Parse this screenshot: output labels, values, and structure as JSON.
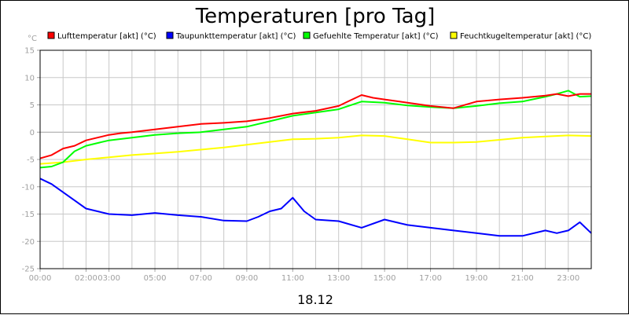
{
  "chart_data": {
    "type": "line",
    "title": "Temperaturen [pro Tag]",
    "ylabel": "°C",
    "xlabel": "18.12",
    "ylim": [
      -25,
      15
    ],
    "xlim": [
      0,
      24
    ],
    "grid": true,
    "legend_position": "top",
    "y_ticks": [
      15,
      10,
      5,
      0,
      -5,
      -10,
      -15,
      -20,
      -25
    ],
    "x_ticks": [
      {
        "label": "00:00",
        "value": 0
      },
      {
        "label": "02:00",
        "value": 2
      },
      {
        "label": "03:00",
        "value": 3
      },
      {
        "label": "05:00",
        "value": 5
      },
      {
        "label": "07:00",
        "value": 7
      },
      {
        "label": "09:00",
        "value": 9
      },
      {
        "label": "11:00",
        "value": 11
      },
      {
        "label": "13:00",
        "value": 13
      },
      {
        "label": "15:00",
        "value": 15
      },
      {
        "label": "17:00",
        "value": 17
      },
      {
        "label": "19:00",
        "value": 19
      },
      {
        "label": "21:00",
        "value": 21
      },
      {
        "label": "23:00",
        "value": 23
      }
    ],
    "series": [
      {
        "name": "Lufttemperatur [akt] (°C)",
        "color": "#ff0000",
        "x": [
          0,
          0.5,
          1,
          1.5,
          2,
          2.5,
          3,
          3.5,
          4,
          5,
          6,
          7,
          8,
          9,
          10,
          11,
          12,
          13,
          13.5,
          14,
          14.5,
          15,
          16,
          17,
          18,
          19,
          20,
          21,
          22,
          22.5,
          23,
          23.5,
          24
        ],
        "values": [
          -4.8,
          -4.2,
          -3.0,
          -2.5,
          -1.5,
          -1.0,
          -0.5,
          -0.2,
          0.0,
          0.5,
          1.0,
          1.5,
          1.7,
          2.0,
          2.6,
          3.4,
          3.9,
          4.8,
          5.8,
          6.8,
          6.3,
          6.0,
          5.4,
          4.8,
          4.4,
          5.6,
          6.0,
          6.3,
          6.7,
          7.0,
          6.6,
          7.0,
          7.0
        ]
      },
      {
        "name": "Taupunkttemperatur [akt] (°C)",
        "color": "#0000ff",
        "x": [
          0,
          0.5,
          1,
          1.5,
          2,
          2.5,
          3,
          4,
          5,
          6,
          7,
          8,
          9,
          9.5,
          10,
          10.5,
          11,
          11.5,
          12,
          13,
          14,
          15,
          16,
          17,
          18,
          19,
          20,
          21,
          22,
          22.5,
          23,
          23.5,
          24
        ],
        "values": [
          -8.5,
          -9.5,
          -11.0,
          -12.5,
          -14.0,
          -14.5,
          -15.0,
          -15.2,
          -14.8,
          -15.2,
          -15.5,
          -16.2,
          -16.3,
          -15.5,
          -14.5,
          -14.0,
          -12.0,
          -14.5,
          -16.0,
          -16.3,
          -17.5,
          -16.0,
          -17.0,
          -17.5,
          -18.0,
          -18.5,
          -19.0,
          -19.0,
          -18.0,
          -18.5,
          -18.0,
          -16.5,
          -18.5
        ]
      },
      {
        "name": "Gefuehlte Temperatur [akt] (°C)",
        "color": "#00ff00",
        "x": [
          0,
          0.5,
          1,
          1.5,
          2,
          2.5,
          3,
          4,
          5,
          6,
          7,
          8,
          9,
          10,
          11,
          12,
          13,
          14,
          15,
          16,
          17,
          18,
          19,
          20,
          21,
          22,
          22.5,
          23,
          23.5,
          24
        ],
        "values": [
          -6.5,
          -6.3,
          -5.5,
          -3.5,
          -2.5,
          -2.0,
          -1.5,
          -1.0,
          -0.5,
          -0.2,
          0.0,
          0.5,
          1.0,
          2.0,
          3.0,
          3.6,
          4.2,
          5.6,
          5.4,
          4.9,
          4.6,
          4.4,
          4.8,
          5.3,
          5.6,
          6.5,
          7.0,
          7.6,
          6.5,
          6.6
        ]
      },
      {
        "name": "Feuchtkugeltemperatur [akt] (°C)",
        "color": "#ffff00",
        "x": [
          0,
          1,
          2,
          3,
          4,
          5,
          6,
          7,
          8,
          9,
          10,
          11,
          12,
          13,
          14,
          15,
          16,
          17,
          18,
          19,
          20,
          21,
          22,
          23,
          24
        ],
        "values": [
          -5.8,
          -5.5,
          -5.0,
          -4.6,
          -4.2,
          -3.9,
          -3.6,
          -3.2,
          -2.8,
          -2.3,
          -1.8,
          -1.3,
          -1.2,
          -1.0,
          -0.6,
          -0.7,
          -1.3,
          -1.9,
          -1.9,
          -1.8,
          -1.4,
          -1.0,
          -0.8,
          -0.6,
          -0.7
        ]
      }
    ]
  }
}
